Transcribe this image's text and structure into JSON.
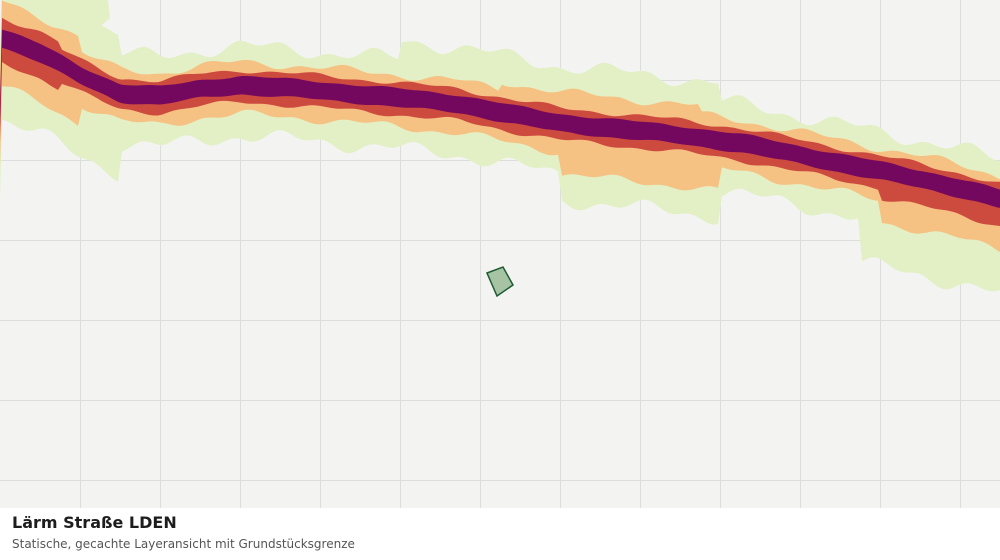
{
  "map": {
    "layer_name": "Lärm Straße LDEN",
    "description": "Statische, gecachte Layeransicht mit Grundstücksgrenze",
    "legend_colors": {
      "background": "#f3f4f2",
      "grid": "#dcdedb",
      "lowest_band": "#e3f0c6",
      "low_band": "#f5c283",
      "high_band": "#cd4a3f",
      "highest_band": "#74085f",
      "parcel_fill": "#a6c4a3",
      "parcel_outline": "#1e5a33"
    }
  }
}
